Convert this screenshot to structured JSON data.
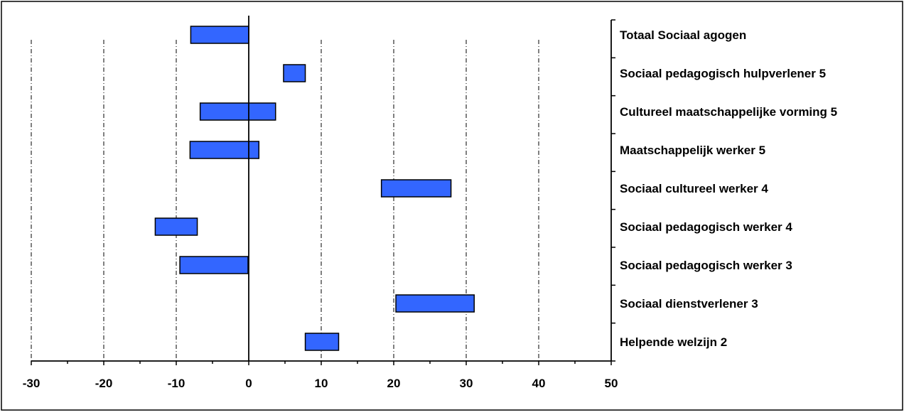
{
  "chart_data": {
    "type": "bar",
    "orientation": "horizontal-floating-range",
    "title": "",
    "xlabel": "",
    "ylabel": "",
    "xlim": [
      -30,
      50
    ],
    "x_ticks": [
      -30,
      -20,
      -10,
      0,
      10,
      20,
      30,
      40,
      50
    ],
    "x_tick_labels": [
      "-30",
      "-20",
      "-10",
      "0",
      "10",
      "20",
      "30",
      "40",
      "50"
    ],
    "grid": "vertical dash-dot at major ticks",
    "legend": "none",
    "categories": [
      "Totaal Sociaal agogen",
      "Sociaal pedagogisch hulpverlener 5",
      "Cultureel maatschappelijke vorming 5",
      "Maatschappelijk werker 5",
      "Sociaal cultureel werker 4",
      "Sociaal pedagogisch werker 4",
      "Sociaal pedagogisch werker 3",
      "Sociaal dienstverlener 3",
      "Helpende welzijn 2"
    ],
    "ranges": [
      [
        -8,
        0
      ],
      [
        4.8,
        7.8
      ],
      [
        -6.7,
        3.7
      ],
      [
        -8.1,
        1.4
      ],
      [
        18.3,
        27.9
      ],
      [
        -12.9,
        -7.1
      ],
      [
        -9.5,
        -0.1
      ],
      [
        20.3,
        31.1
      ],
      [
        7.8,
        12.4
      ]
    ],
    "colors": {
      "bar_fill": "#3366ff",
      "bar_stroke": "#000000",
      "axis": "#000000",
      "grid": "#000000",
      "background": "#ffffff"
    }
  }
}
